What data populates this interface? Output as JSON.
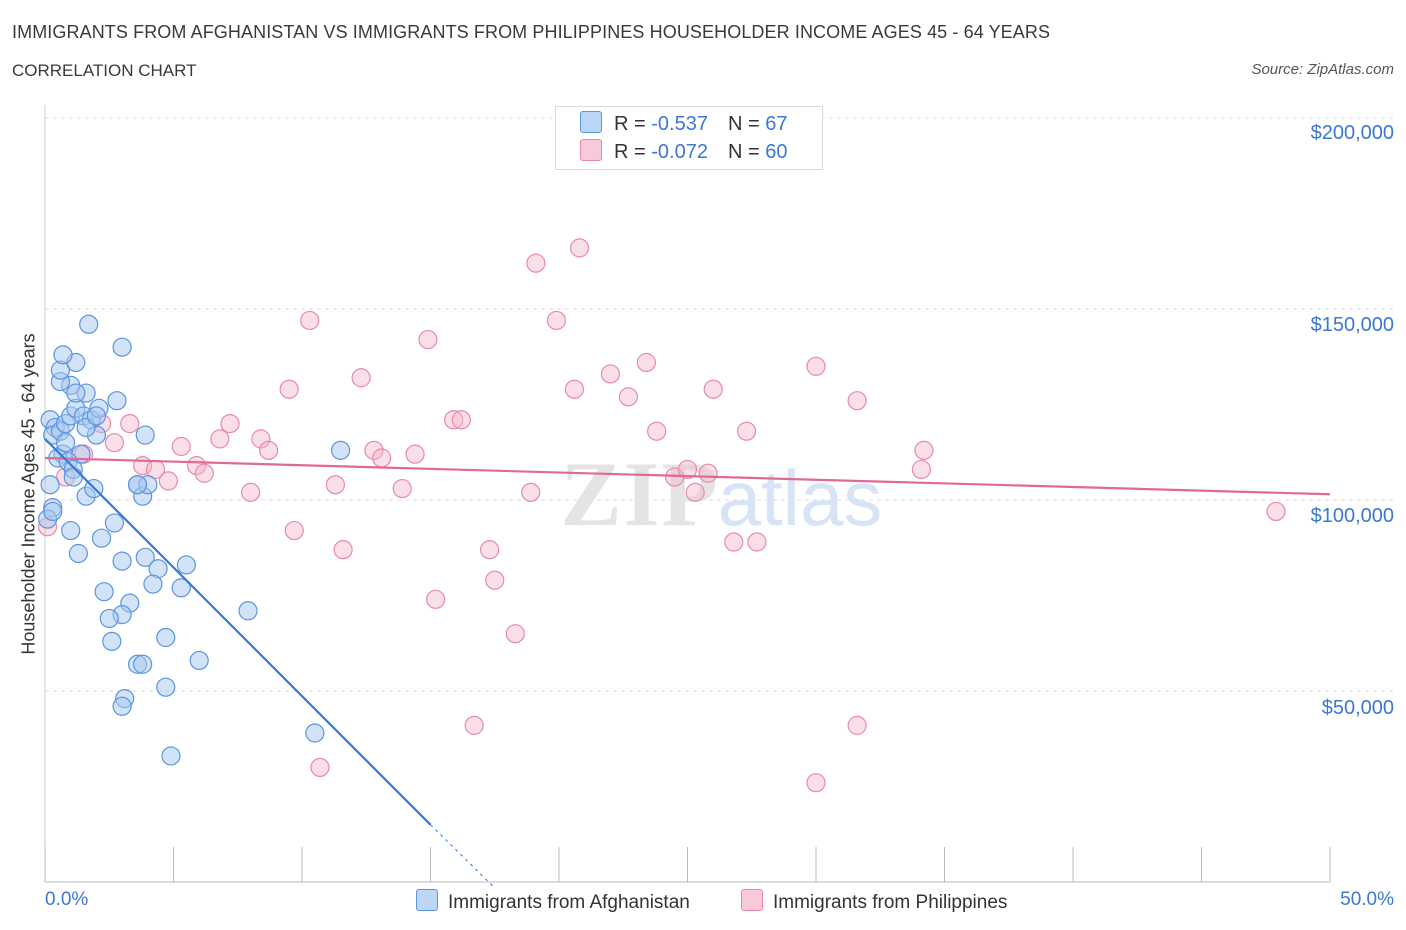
{
  "header": {
    "title": "IMMIGRANTS FROM AFGHANISTAN VS IMMIGRANTS FROM PHILIPPINES HOUSEHOLDER INCOME AGES 45 - 64 YEARS",
    "subtitle": "CORRELATION CHART",
    "source": "Source: ZipAtlas.com"
  },
  "legend": {
    "row1": {
      "r_label": "R = ",
      "r_value": "-0.537",
      "n_label": "N = ",
      "n_value": "67"
    },
    "row2": {
      "r_label": "R = ",
      "r_value": "-0.072",
      "n_label": "N = ",
      "n_value": "60"
    }
  },
  "colors": {
    "blue_fill": "#a8c8f0",
    "blue_stroke": "#5a95e0",
    "blue_line": "#2f7be0",
    "pink_fill": "#f4b8cb",
    "pink_stroke": "#e88aa8",
    "pink_line": "#e06a95",
    "grid": "#dddddd",
    "tick_text": "#3a78d6"
  },
  "chart_data": {
    "type": "scatter",
    "title": "IMMIGRANTS FROM AFGHANISTAN VS IMMIGRANTS FROM PHILIPPINES HOUSEHOLDER INCOME AGES 45 - 64 YEARS",
    "subtitle": "CORRELATION CHART",
    "xlabel": "",
    "ylabel": "Householder Income Ages 45 - 64 years",
    "xlim": [
      0,
      50
    ],
    "ylim": [
      0,
      200000
    ],
    "x_tick_labels": [
      "0.0%",
      "50.0%"
    ],
    "y_ticks": [
      50000,
      100000,
      150000,
      200000
    ],
    "y_tick_labels": [
      "$50,000",
      "$100,000",
      "$150,000",
      "$200,000"
    ],
    "grid": true,
    "watermark": "ZIPatlas",
    "series": [
      {
        "name": "Immigrants from Afghanistan",
        "color": "#5a95e0",
        "r": -0.537,
        "n": 67,
        "trend": {
          "x0": 0.0,
          "y0": 116000,
          "x1": 15.0,
          "y1": 15000,
          "dash_to_x": 17.5,
          "dash_to_y": -2000
        },
        "points": [
          [
            0.2,
            121000
          ],
          [
            0.4,
            119000
          ],
          [
            0.3,
            117000
          ],
          [
            0.6,
            118000
          ],
          [
            0.8,
            120000
          ],
          [
            1.0,
            122000
          ],
          [
            1.2,
            124000
          ],
          [
            1.5,
            122000
          ],
          [
            1.8,
            121000
          ],
          [
            2.0,
            117000
          ],
          [
            1.6,
            119000
          ],
          [
            0.7,
            112000
          ],
          [
            1.4,
            112000
          ],
          [
            0.5,
            111000
          ],
          [
            0.9,
            110000
          ],
          [
            1.1,
            108000
          ],
          [
            2.1,
            124000
          ],
          [
            2.8,
            126000
          ],
          [
            3.9,
            117000
          ],
          [
            1.6,
            128000
          ],
          [
            1.0,
            130000
          ],
          [
            0.6,
            131000
          ],
          [
            1.2,
            128000
          ],
          [
            0.6,
            134000
          ],
          [
            1.2,
            136000
          ],
          [
            0.7,
            138000
          ],
          [
            3.0,
            140000
          ],
          [
            1.7,
            146000
          ],
          [
            0.2,
            104000
          ],
          [
            0.3,
            98000
          ],
          [
            0.1,
            95000
          ],
          [
            1.0,
            92000
          ],
          [
            2.2,
            90000
          ],
          [
            2.7,
            94000
          ],
          [
            3.6,
            104000
          ],
          [
            3.8,
            101000
          ],
          [
            4.0,
            104000
          ],
          [
            1.3,
            86000
          ],
          [
            3.0,
            84000
          ],
          [
            3.9,
            85000
          ],
          [
            4.4,
            82000
          ],
          [
            5.5,
            83000
          ],
          [
            4.2,
            78000
          ],
          [
            2.3,
            76000
          ],
          [
            5.3,
            77000
          ],
          [
            3.3,
            73000
          ],
          [
            3.0,
            70000
          ],
          [
            2.5,
            69000
          ],
          [
            4.7,
            64000
          ],
          [
            2.6,
            63000
          ],
          [
            7.9,
            71000
          ],
          [
            3.6,
            57000
          ],
          [
            3.8,
            57000
          ],
          [
            6.0,
            58000
          ],
          [
            4.7,
            51000
          ],
          [
            3.1,
            48000
          ],
          [
            3.0,
            46000
          ],
          [
            10.5,
            39000
          ],
          [
            4.9,
            33000
          ],
          [
            11.5,
            113000
          ],
          [
            0.3,
            97000
          ],
          [
            1.1,
            106000
          ],
          [
            3.6,
            104000
          ],
          [
            1.6,
            101000
          ],
          [
            2.0,
            122000
          ],
          [
            0.8,
            115000
          ],
          [
            1.9,
            103000
          ]
        ]
      },
      {
        "name": "Immigrants from Philippines",
        "color": "#e88aa8",
        "r": -0.072,
        "n": 60,
        "trend": {
          "x0": 0.0,
          "y0": 111000,
          "x1": 50.0,
          "y1": 101500
        },
        "points": [
          [
            0.1,
            93000
          ],
          [
            0.8,
            106000
          ],
          [
            1.5,
            112000
          ],
          [
            2.2,
            120000
          ],
          [
            2.7,
            115000
          ],
          [
            3.3,
            120000
          ],
          [
            3.8,
            109000
          ],
          [
            4.3,
            108000
          ],
          [
            4.8,
            105000
          ],
          [
            5.3,
            114000
          ],
          [
            5.9,
            109000
          ],
          [
            6.2,
            107000
          ],
          [
            6.8,
            116000
          ],
          [
            7.2,
            120000
          ],
          [
            8.0,
            102000
          ],
          [
            8.4,
            116000
          ],
          [
            8.7,
            113000
          ],
          [
            9.5,
            129000
          ],
          [
            9.7,
            92000
          ],
          [
            10.3,
            147000
          ],
          [
            10.7,
            30000
          ],
          [
            11.3,
            104000
          ],
          [
            11.6,
            87000
          ],
          [
            12.3,
            132000
          ],
          [
            12.8,
            113000
          ],
          [
            13.1,
            111000
          ],
          [
            13.9,
            103000
          ],
          [
            14.4,
            112000
          ],
          [
            14.9,
            142000
          ],
          [
            15.2,
            74000
          ],
          [
            15.9,
            121000
          ],
          [
            16.2,
            121000
          ],
          [
            17.3,
            87000
          ],
          [
            17.5,
            79000
          ],
          [
            16.7,
            41000
          ],
          [
            18.3,
            65000
          ],
          [
            18.9,
            102000
          ],
          [
            19.1,
            162000
          ],
          [
            19.9,
            147000
          ],
          [
            20.6,
            129000
          ],
          [
            20.8,
            166000
          ],
          [
            22.0,
            133000
          ],
          [
            22.7,
            127000
          ],
          [
            23.4,
            136000
          ],
          [
            23.8,
            118000
          ],
          [
            24.5,
            106000
          ],
          [
            25.0,
            108000
          ],
          [
            25.3,
            102000
          ],
          [
            26.0,
            129000
          ],
          [
            26.8,
            89000
          ],
          [
            27.3,
            118000
          ],
          [
            27.7,
            89000
          ],
          [
            30.0,
            135000
          ],
          [
            30.0,
            26000
          ],
          [
            31.6,
            126000
          ],
          [
            31.6,
            41000
          ],
          [
            34.2,
            113000
          ],
          [
            34.1,
            108000
          ],
          [
            47.9,
            97000
          ],
          [
            25.8,
            107000
          ]
        ]
      }
    ]
  },
  "x_axis": {
    "left_label": "0.0%",
    "right_label": "50.0%"
  },
  "y_axis": {
    "label": "Householder Income Ages 45 - 64 years",
    "ticks": [
      "$200,000",
      "$150,000",
      "$100,000",
      "$50,000"
    ]
  },
  "bottom_legend": {
    "item1": "Immigrants from Afghanistan",
    "item2": "Immigrants from Philippines"
  }
}
